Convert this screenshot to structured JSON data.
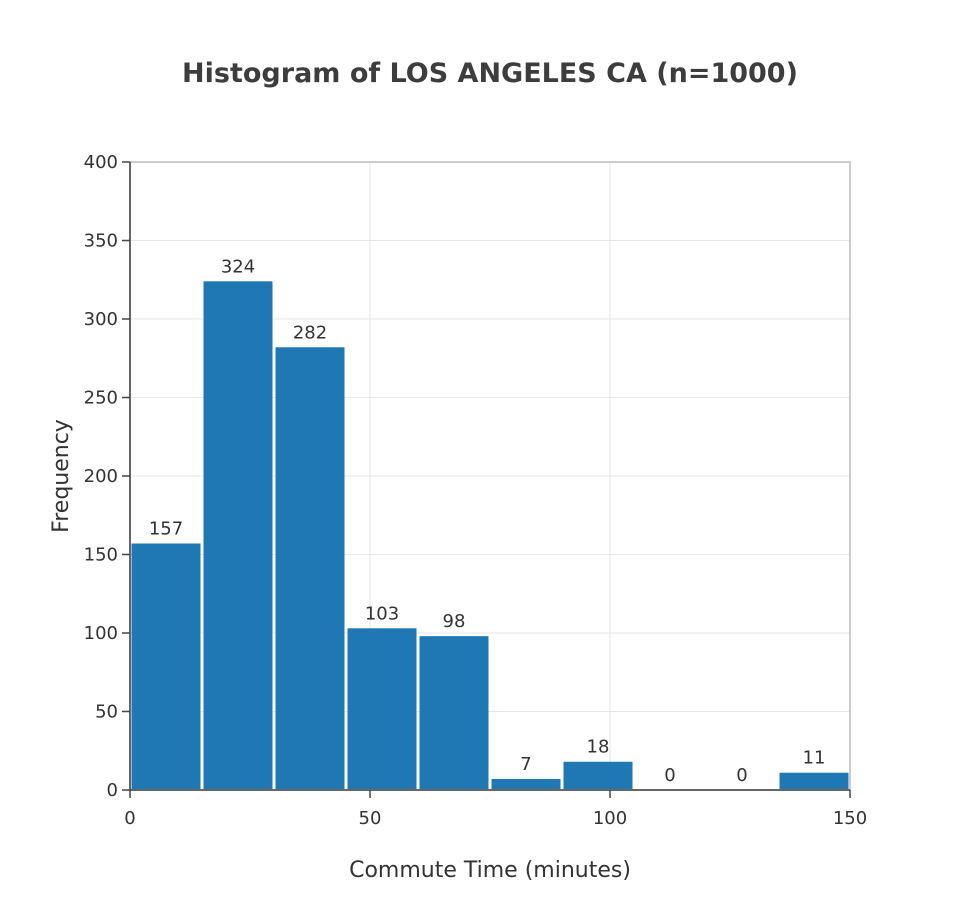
{
  "chart_data": {
    "type": "bar",
    "title": "Histogram of LOS ANGELES CA (n=1000)",
    "xlabel": "Commute Time (minutes)",
    "ylabel": "Frequency",
    "xlim": [
      0,
      150
    ],
    "ylim": [
      0,
      400
    ],
    "xticks": [
      0,
      50,
      100,
      150
    ],
    "yticks": [
      0,
      50,
      100,
      150,
      200,
      250,
      300,
      350,
      400
    ],
    "bin_edges": [
      0,
      15,
      30,
      45,
      60,
      75,
      90,
      105,
      120,
      135,
      150
    ],
    "values": [
      157,
      324,
      282,
      103,
      98,
      7,
      18,
      0,
      0,
      11
    ],
    "bar_color": "#1f77b4",
    "grid": true,
    "legend": "none"
  }
}
